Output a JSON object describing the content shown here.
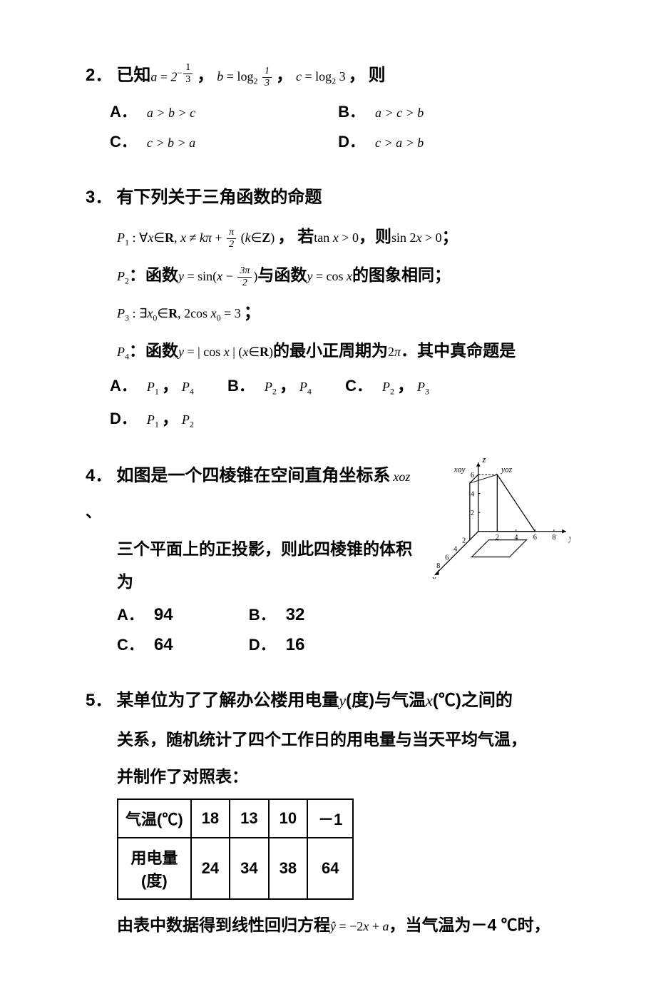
{
  "q2": {
    "num": "2．",
    "prefix": "已知",
    "expr_parts": [
      "，",
      "，",
      "，"
    ],
    "suffix": "则",
    "options": {
      "A": "A．",
      "B": "B．",
      "C": "C．",
      "D": "D．"
    }
  },
  "q3": {
    "num": "3．",
    "title": "有下列关于三角函数的命题",
    "p1_mid1": "若",
    "p1_mid2": "，则",
    "p1_end": "；",
    "p2_mid": "与函数",
    "p2_end": "的图象相同；",
    "p2_label": "：函数",
    "p4_label": "：函数",
    "p4_mid": "的最小正周期为",
    "p4_end": "．其中真命题是",
    "options": {
      "A": "A．",
      "B": "B．",
      "C": "C．",
      "D": "D．"
    },
    "comma": "，"
  },
  "q4": {
    "num": "4．",
    "line1": "如图是一个四棱锥在空间直角坐标系",
    "sep": "、",
    "line2": "三个平面上的正投影，则此四棱锥的体积为",
    "options": {
      "A": "A．",
      "A_val": "94",
      "B": "B．",
      "B_val": "32",
      "C": "C．",
      "C_val": "64",
      "D": "D．",
      "D_val": "16"
    },
    "figure": {
      "x_ticks": [
        2,
        4,
        6,
        8
      ],
      "y_ticks": [
        2,
        4,
        6,
        8
      ],
      "z_ticks": [
        2,
        4,
        6
      ],
      "labels": {
        "x": "x",
        "y": "y",
        "z": "z",
        "xoy": "xoy",
        "yoz": "yoz"
      },
      "axis_color": "#000",
      "line_color": "#000",
      "dash": "3 2",
      "bg": "#fff",
      "font_size": 11
    }
  },
  "q5": {
    "num": "5．",
    "line1a": "某单位为了了解办公楼用电量 ",
    "line1b": "(度)与气温 ",
    "line1c": "(℃)之间的",
    "line2": "关系，随机统计了四个工作日的用电量与当天平均气温，",
    "line3": "并制作了对照表：",
    "y": "y",
    "x": "x",
    "table": {
      "col_header": "气温(℃)",
      "row2_header": "用电量(度)",
      "cols": [
        "18",
        "13",
        "10",
        "－1"
      ],
      "row2": [
        "24",
        "34",
        "38",
        "64"
      ],
      "border_color": "#000"
    },
    "tail1": "由表中数据得到线性回归方程",
    "tail2": "，当气温为－4 ℃时，"
  }
}
